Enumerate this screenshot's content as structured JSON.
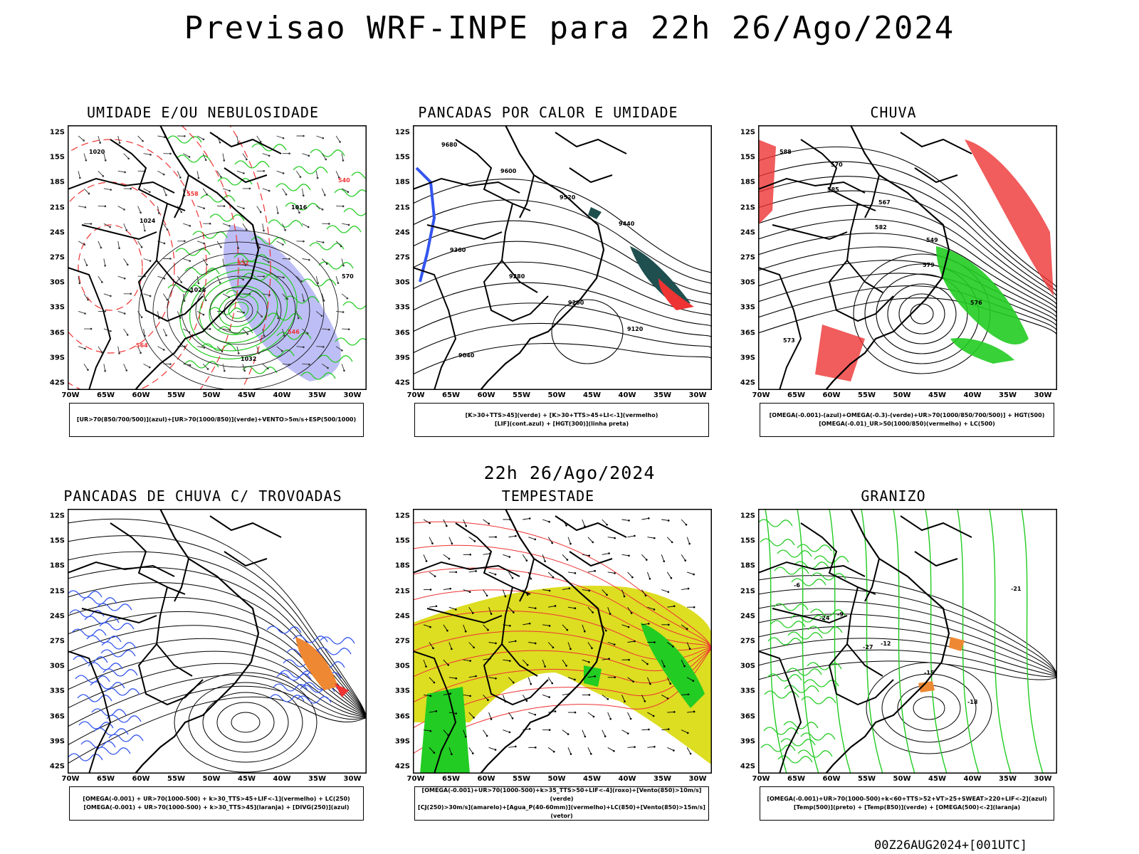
{
  "header": {
    "title": "Previsao WRF-INPE  para 22h 26/Ago/2024",
    "mid_title": "22h 26/Ago/2024",
    "footer": "00Z26AUG2024+[001UTC]"
  },
  "axes": {
    "lat_labels": [
      "12S",
      "15S",
      "18S",
      "21S",
      "24S",
      "27S",
      "30S",
      "33S",
      "36S",
      "39S",
      "42S"
    ],
    "lon_labels": [
      "70W",
      "65W",
      "60W",
      "55W",
      "50W",
      "45W",
      "40W",
      "35W",
      "30W"
    ]
  },
  "panels": [
    {
      "title": "UMIDADE E/OU NEBULOSIDADE",
      "legend": [
        "[UR>70(850/700/500)](azul)+[UR>70(1000/850)](verde)+VENTO>5m/s+ESP(500/1000)"
      ],
      "labels": [
        "1020",
        "1024",
        "1028",
        "1032",
        "1016",
        "570",
        "564",
        "558",
        "552",
        "546",
        "540"
      ]
    },
    {
      "title": "PANCADAS POR CALOR E UMIDADE",
      "legend": [
        "[K>30+TTS>45](verde) + [K>30+TTS>45+LI<-1](vermelho)",
        "[LIF](cont.azul) + [HGT(300)](linha preta)"
      ],
      "labels": [
        "9680",
        "9600",
        "9520",
        "9440",
        "9360",
        "9280",
        "9200",
        "9120",
        "9040"
      ]
    },
    {
      "title": "CHUVA",
      "legend": [
        "[OMEGA(-0.001)-(azul)+OMEGA(-0.3)-(verde)+UR>70(1000/850/700/500)] + HGT(500)",
        "[OMEGA(-0.01)_UR>50(1000/850)(vermelho) + LC(500)"
      ],
      "labels": [
        "588",
        "585",
        "582",
        "579",
        "576",
        "573",
        "570",
        "567",
        "549"
      ]
    },
    {
      "title": "PANCADAS DE CHUVA C/ TROVOADAS",
      "legend": [
        "[OMEGA(-0.001) + UR>70(1000-500) + k>30_TTS>45+LIF<-1](vermelho) + LC(250)",
        "[OMEGA(-0.001) + UR>70(1000-500) + k>30_TTS>45](laranja) + [DIVG(250)](azul)"
      ],
      "labels": []
    },
    {
      "title": "TEMPESTADE",
      "legend": [
        "[OMEGA(-0.001)+UR>70(1000-500)+k>35_TTS>50+LIF<-4](roxo)+[Vento(850)>10m/s](verde)",
        "[CJ(250)>30m/s](amarelo)+[Agua_P(40-60mm)](vermelho)+LC(850)+[Vento(850)>15m/s](vetor)"
      ],
      "labels": []
    },
    {
      "title": "GRANIZO",
      "legend": [
        "[OMEGA(-0.001)+UR>70(1000-500)+k<60+TTS>52+VT>25+SWEAT>220+LIF<-2](azul)",
        "[Temp(500)](preto) + [Temp(850)](verde) + [OMEGA(500)<-2](laranja)"
      ],
      "labels": [
        "-6",
        "-9",
        "-12",
        "-15",
        "-18",
        "-21",
        "-24",
        "-27"
      ]
    }
  ],
  "colors": {
    "green": "#22cc22",
    "blue": "#3355ee",
    "red": "#ee3333",
    "orange": "#ee8833",
    "yellow": "#dddd22",
    "purple": "#8888ee",
    "teal": "#1f4f4f"
  }
}
